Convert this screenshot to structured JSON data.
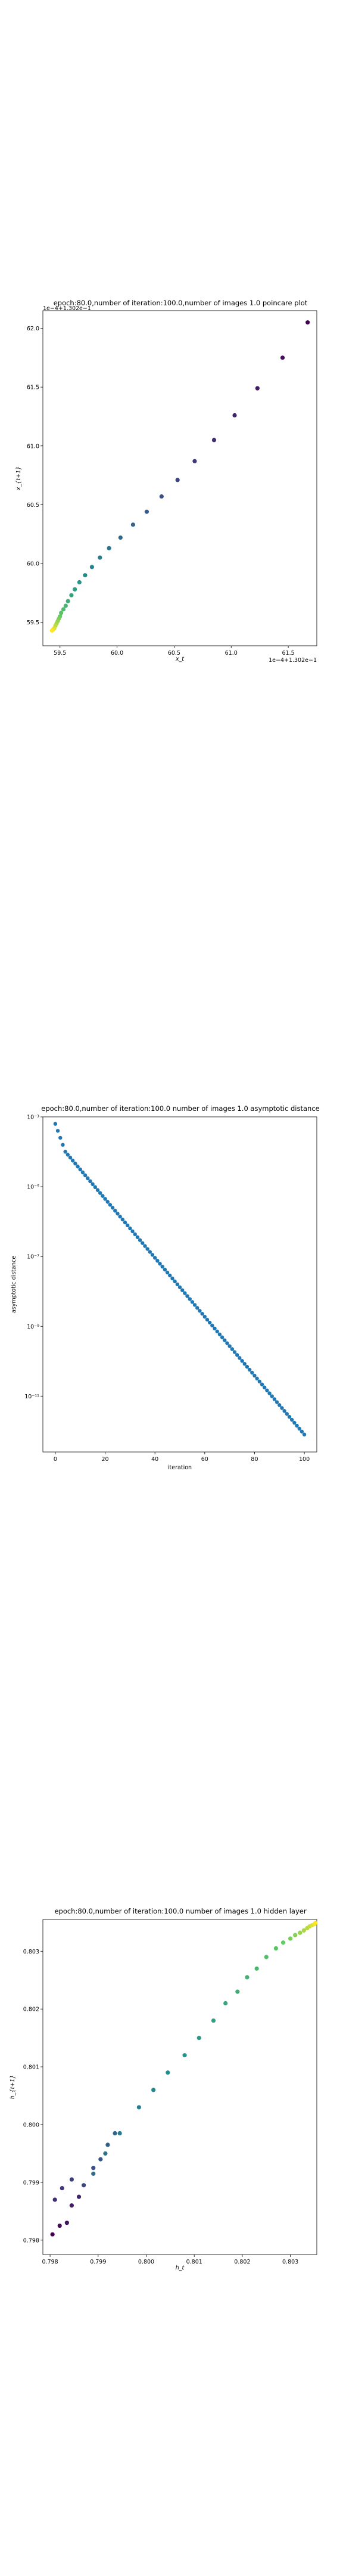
{
  "chart_data": [
    {
      "type": "scatter",
      "title": "epoch:80.0,number of iteration:100.0,number of images 1.0 poincare plot",
      "xlabel": "x_t",
      "ylabel": "x_{t+1}",
      "offset_text": "1e−4+1.302e−1",
      "corner_text": "1e−4+1.302e−1",
      "xlim": [
        59.35,
        61.75
      ],
      "ylim": [
        59.3,
        62.15
      ],
      "xticks": [
        59.5,
        60.0,
        60.5,
        61.0,
        61.5
      ],
      "xtick_labels": [
        "59.5",
        "60.0",
        "60.5",
        "61.0",
        "61.5"
      ],
      "yticks": [
        59.5,
        60.0,
        60.5,
        61.0,
        61.5,
        62.0
      ],
      "ytick_labels": [
        "59.5",
        "60.0",
        "60.5",
        "61.0",
        "61.5",
        "62.0"
      ],
      "colormap": "viridis",
      "x": [
        61.67,
        61.45,
        61.23,
        61.03,
        60.85,
        60.68,
        60.53,
        60.39,
        60.26,
        60.14,
        60.03,
        59.93,
        59.85,
        59.78,
        59.72,
        59.67,
        59.63,
        59.6,
        59.57,
        59.55,
        59.53,
        59.51,
        59.5,
        59.49,
        59.48,
        59.47,
        59.46,
        59.45,
        59.44,
        59.43
      ],
      "y": [
        62.05,
        61.75,
        61.49,
        61.26,
        61.05,
        60.87,
        60.71,
        60.57,
        60.44,
        60.33,
        60.22,
        60.13,
        60.05,
        59.97,
        59.9,
        59.84,
        59.78,
        59.73,
        59.68,
        59.64,
        59.61,
        59.58,
        59.55,
        59.53,
        59.51,
        59.49,
        59.47,
        59.45,
        59.44,
        59.43
      ]
    },
    {
      "type": "line",
      "title": "epoch:80.0,number of iteration:100.0  number of images 1.0 asymptotic distance",
      "xlabel": "iteration",
      "ylabel": "asymptotic distance",
      "yscale": "log",
      "xlim": [
        -5,
        105
      ],
      "ylim_exp": [
        -12.6,
        -3.0
      ],
      "xticks": [
        0,
        20,
        40,
        60,
        80,
        100
      ],
      "xtick_labels": [
        "0",
        "20",
        "40",
        "60",
        "80",
        "100"
      ],
      "yticks_exp": [
        -11,
        -9,
        -7,
        -5,
        -3
      ],
      "ytick_labels": [
        "10⁻¹¹",
        "10⁻⁹",
        "10⁻⁷",
        "10⁻⁵",
        "10⁻³"
      ],
      "marker_color": "#1f77b4",
      "series": [
        {
          "x_start": 0,
          "x_end": 100,
          "log10_y_start": -3.2,
          "log10_y_knee": -4.0,
          "knee_x": 4,
          "log10_y_end": -12.1
        }
      ]
    },
    {
      "type": "scatter",
      "title": "epoch:80.0,number of iteration:100.0  number of images 1.0 hidden layer",
      "xlabel": "h_t",
      "ylabel": "h_{t+1}",
      "xlim": [
        0.79785,
        0.80355
      ],
      "ylim": [
        0.79775,
        0.80355
      ],
      "xticks": [
        0.798,
        0.799,
        0.8,
        0.801,
        0.802,
        0.803
      ],
      "xtick_labels": [
        "0.798",
        "0.799",
        "0.800",
        "0.801",
        "0.802",
        "0.803"
      ],
      "yticks": [
        0.798,
        0.799,
        0.8,
        0.801,
        0.802,
        0.803
      ],
      "ytick_labels": [
        "0.798",
        "0.799",
        "0.800",
        "0.801",
        "0.802",
        "0.803"
      ],
      "colormap": "viridis",
      "x": [
        0.79805,
        0.7982,
        0.79835,
        0.79845,
        0.7986,
        0.7981,
        0.79825,
        0.79845,
        0.7987,
        0.7989,
        0.79905,
        0.7992,
        0.79935,
        0.7989,
        0.79915,
        0.79945,
        0.79985,
        0.80015,
        0.80045,
        0.8008,
        0.8011,
        0.8014,
        0.80165,
        0.8019,
        0.8021,
        0.8023,
        0.8025,
        0.8027,
        0.80285,
        0.803,
        0.8031,
        0.8032,
        0.80328,
        0.80335,
        0.8034,
        0.80345,
        0.8035,
        0.80352
      ],
      "y": [
        0.7981,
        0.79825,
        0.7983,
        0.7986,
        0.79875,
        0.7987,
        0.7989,
        0.79905,
        0.79895,
        0.79925,
        0.7994,
        0.79965,
        0.79985,
        0.79915,
        0.7995,
        0.79985,
        0.8003,
        0.8006,
        0.8009,
        0.8012,
        0.8015,
        0.8018,
        0.8021,
        0.8023,
        0.80255,
        0.8027,
        0.8029,
        0.80305,
        0.80315,
        0.80322,
        0.80328,
        0.80332,
        0.80336,
        0.8034,
        0.80343,
        0.80345,
        0.80347,
        0.80349
      ]
    }
  ]
}
